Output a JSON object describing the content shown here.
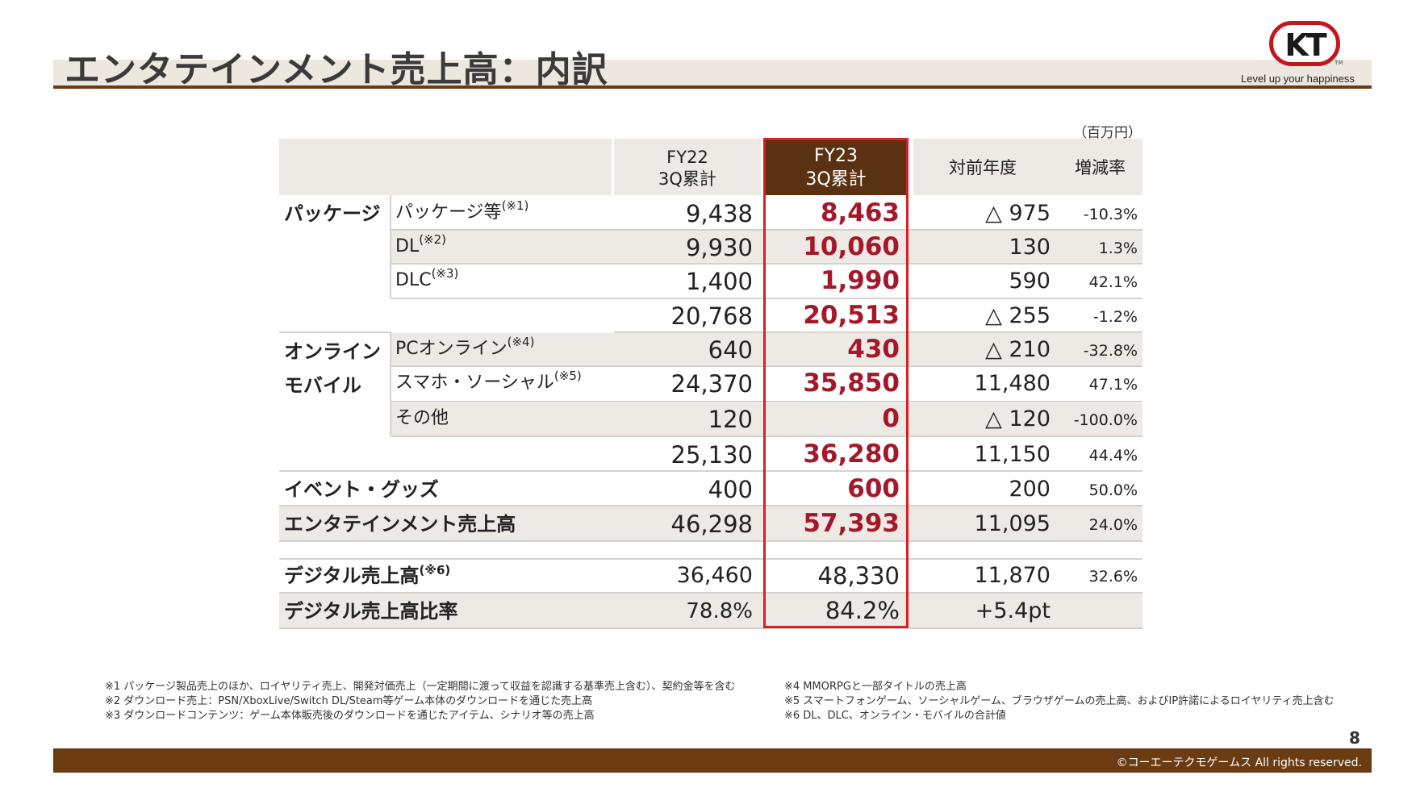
{
  "header": {
    "title": "エンタテインメント売上高：内訳",
    "logo_text": "KT",
    "logo_tm": "TM",
    "tagline": "Level up your happiness"
  },
  "unit_note": "（百万円）",
  "table": {
    "col_fy22": [
      "FY22",
      "3Q累計"
    ],
    "col_fy23": [
      "FY23",
      "3Q累計"
    ],
    "col_yoy": "対前年度",
    "col_rate": "増減率",
    "categories": {
      "package": "パッケージ",
      "online_1": "オンライン",
      "online_2": "モバイル"
    },
    "rows": [
      {
        "sub": "パッケージ等",
        "sup": "(※1)",
        "fy22": "9,438",
        "fy23": "8,463",
        "yoy": "△ 975",
        "rate": "-10.3%"
      },
      {
        "sub": "DL",
        "sup": "(※2)",
        "fy22": "9,930",
        "fy23": "10,060",
        "yoy": "130",
        "rate": "1.3%"
      },
      {
        "sub": "DLC",
        "sup": "(※3)",
        "fy22": "1,400",
        "fy23": "1,990",
        "yoy": "590",
        "rate": "42.1%"
      },
      {
        "sub": "",
        "sup": "",
        "fy22": "20,768",
        "fy23": "20,513",
        "yoy": "△ 255",
        "rate": "-1.2%"
      },
      {
        "sub": "PCオンライン",
        "sup": "(※4)",
        "fy22": "640",
        "fy23": "430",
        "yoy": "△ 210",
        "rate": "-32.8%"
      },
      {
        "sub": "スマホ・ソーシャル",
        "sup": "(※5)",
        "fy22": "24,370",
        "fy23": "35,850",
        "yoy": "11,480",
        "rate": "47.1%"
      },
      {
        "sub": "その他",
        "sup": "",
        "fy22": "120",
        "fy23": "0",
        "yoy": "△ 120",
        "rate": "-100.0%"
      },
      {
        "sub": "",
        "sup": "",
        "fy22": "25,130",
        "fy23": "36,280",
        "yoy": "11,150",
        "rate": "44.4%"
      },
      {
        "label": "イベント・グッズ",
        "fy22": "400",
        "fy23": "600",
        "yoy": "200",
        "rate": "50.0%"
      },
      {
        "label": "エンタテインメント売上高",
        "fy22": "46,298",
        "fy23": "57,393",
        "yoy": "11,095",
        "rate": "24.0%"
      },
      {
        "label": "デジタル売上高",
        "sup": "(※6)",
        "fy22": "36,460",
        "fy23": "48,330",
        "yoy": "11,870",
        "rate": "32.6%"
      },
      {
        "label": "デジタル売上高比率",
        "fy22": "78.8%",
        "fy23": "84.2%",
        "yoy": "+5.4pt",
        "rate": ""
      }
    ]
  },
  "footnotes": {
    "left": [
      "※1 パッケージ製品売上のほか、ロイヤリティ売上、開発対価売上（一定期間に渡って収益を認識する基準売上含む）、契約金等を含む",
      "※2 ダウンロード売上：PSN/XboxLive/Switch DL/Steam等ゲーム本体のダウンロードを通じた売上高",
      "※3 ダウンロードコンテンツ：ゲーム本体販売後のダウンロードを通じたアイテム、シナリオ等の売上高"
    ],
    "right": [
      "※4 MMORPGと一部タイトルの売上高",
      "※5 スマートフォンゲーム、ソーシャルゲーム、ブラウザゲームの売上高、およびIP許諾によるロイヤリティ売上含む",
      "※6 DL、DLC、オンライン・モバイルの合計値"
    ]
  },
  "page_number": "8",
  "copyright": "©コーエーテクモゲームス All rights reserved."
}
